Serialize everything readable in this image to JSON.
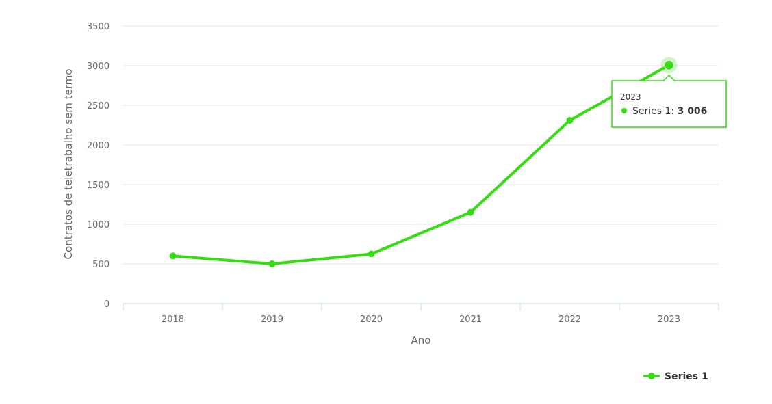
{
  "chart_data": {
    "type": "line",
    "categories": [
      "2018",
      "2019",
      "2020",
      "2021",
      "2022",
      "2023"
    ],
    "series": [
      {
        "name": "Series 1",
        "values": [
          600,
          500,
          625,
          1150,
          2310,
          3006
        ],
        "color": "#33dd11"
      }
    ],
    "xlabel": "Ano",
    "ylabel": "Contratos de teletrabalho sem termo",
    "ylim": [
      0,
      3500
    ],
    "yticks": [
      "0",
      "500",
      "1000",
      "1500",
      "2000",
      "2500",
      "3000",
      "3500"
    ],
    "grid": true,
    "legend": "bottom-right",
    "tooltip": {
      "header": "2023",
      "series_label": "Series 1: ",
      "value": "3 006"
    }
  }
}
